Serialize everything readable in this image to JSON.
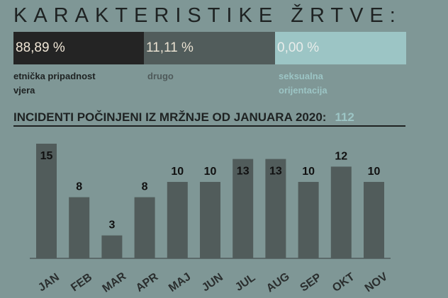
{
  "title": "KARAKTERISTIKE ŽRTVE:",
  "segments": [
    {
      "value": "88,89 %",
      "label_lines": [
        "etnička pripadnost",
        "vjera"
      ],
      "color": "#242424",
      "text_color": "#f0e6d6",
      "label_color": "#1e2222"
    },
    {
      "value": "11,11 %",
      "label_lines": [
        "drugo"
      ],
      "color": "#515c5b",
      "text_color": "#e8e0d0",
      "label_color": "#4f5a5a"
    },
    {
      "value": "0,00 %",
      "label_lines": [
        "seksualna",
        "orijentacija"
      ],
      "color": "#9cc5c5",
      "text_color": "#e8ecea",
      "label_color": "#9cc5c5"
    }
  ],
  "subtitle": "INCIDENTI POČINJENI IZ MRŽNJE OD JANUARA 2020:",
  "total": "112",
  "chart_data": {
    "type": "bar",
    "title": "INCIDENTI POČINJENI IZ MRŽNJE OD JANUARA 2020:",
    "categories": [
      "JAN",
      "FEB",
      "MAR",
      "APR",
      "MAJ",
      "JUN",
      "JUL",
      "AUG",
      "SEP",
      "OKT",
      "NOV"
    ],
    "values": [
      15,
      8,
      3,
      8,
      10,
      10,
      13,
      13,
      10,
      12,
      10
    ],
    "ylim": [
      0,
      15
    ],
    "xlabel": "",
    "ylabel": "",
    "grid": false,
    "bar_color": "#515c5b"
  }
}
